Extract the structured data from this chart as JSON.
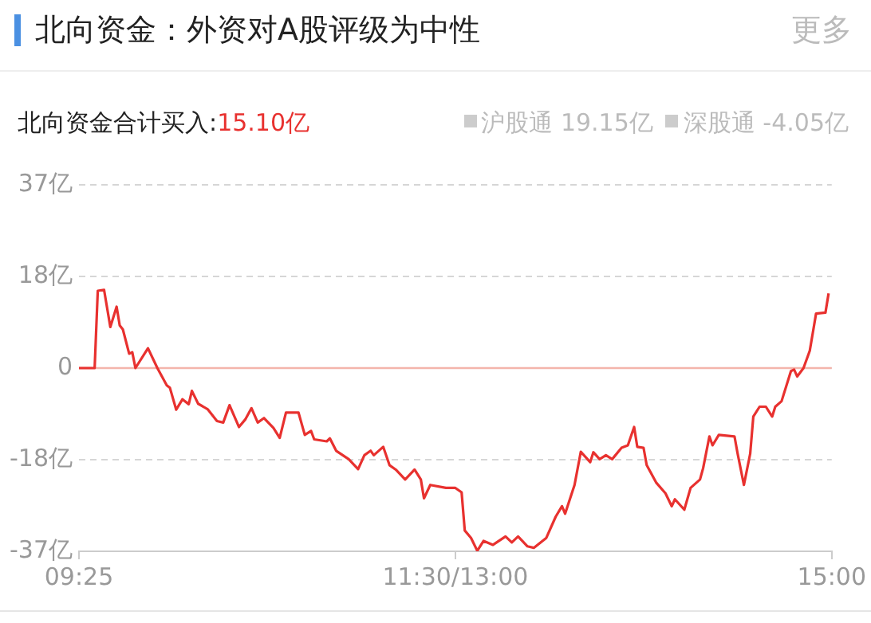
{
  "chart_data": {
    "type": "line",
    "title": "北向资金：外资对A股评级为中性",
    "subtitle": "北向资金合计买入:15.10亿",
    "annotations": [
      "沪股通 19.15亿",
      "深股通 -4.05亿",
      "更多"
    ],
    "categories": [
      "09:25",
      null,
      null,
      null,
      null,
      null,
      null,
      null,
      null,
      null,
      null,
      null,
      null,
      null,
      null,
      null,
      null,
      null,
      null,
      null,
      null,
      null,
      null,
      null,
      null,
      null,
      null,
      null,
      null,
      null,
      null,
      null,
      null,
      null,
      null,
      null,
      null,
      null,
      null,
      null,
      null,
      null,
      null,
      null,
      null,
      null,
      null,
      null,
      null,
      null,
      null,
      null,
      null,
      null,
      null,
      null,
      null,
      null,
      null,
      null,
      null,
      null,
      null,
      null,
      null,
      null,
      null,
      null,
      null,
      null,
      null,
      null,
      null,
      null,
      null,
      null,
      null,
      null,
      null,
      null,
      null,
      null,
      null,
      null,
      null,
      null,
      null,
      null,
      null,
      null,
      null,
      null,
      null,
      null,
      null,
      null,
      null,
      null,
      null,
      null,
      null,
      null,
      null,
      null,
      null,
      null,
      null,
      null,
      null,
      null,
      null,
      null,
      null,
      null,
      null,
      null,
      null,
      null,
      null,
      null,
      "11:30/13:00",
      null,
      null,
      null,
      null,
      null,
      null,
      null,
      null,
      null,
      null,
      null,
      null,
      null,
      null,
      null,
      null,
      null,
      null,
      null,
      null,
      null,
      null,
      null,
      null,
      null,
      null,
      null,
      null,
      null,
      null,
      null,
      null,
      null,
      null,
      null,
      null,
      null,
      null,
      null,
      null,
      null,
      null,
      null,
      null,
      null,
      null,
      null,
      null,
      null,
      null,
      null,
      null,
      null,
      null,
      null,
      null,
      null,
      null,
      null,
      null,
      null,
      null,
      null,
      null,
      null,
      null,
      null,
      null,
      null,
      null,
      null,
      null,
      null,
      null,
      null,
      null,
      null,
      null,
      null,
      null,
      null,
      null,
      null,
      null,
      null,
      null,
      null,
      null,
      null,
      null,
      null,
      null,
      null,
      null,
      null,
      null,
      null,
      null,
      null,
      null,
      null,
      null,
      null,
      null,
      null,
      null,
      null,
      null,
      null,
      null,
      null,
      null,
      null,
      null,
      null,
      null,
      null,
      null,
      null,
      "15:00"
    ],
    "series": [
      {
        "color": "#e8312f",
        "values": [
          0,
          null,
          null,
          null,
          null,
          0,
          15.6,
          null,
          15.8,
          null,
          8.3,
          null,
          12.4,
          8.6,
          7.8,
          null,
          2.9,
          3.2,
          0,
          null,
          null,
          null,
          4.0,
          null,
          null,
          0,
          null,
          null,
          -3.5,
          -4.0,
          null,
          -8.4,
          null,
          -6.3,
          null,
          -7.3,
          -4.6,
          null,
          -7.2,
          null,
          null,
          -8.3,
          null,
          null,
          -10.7,
          null,
          -11.0,
          null,
          -7.5,
          null,
          null,
          -11.9,
          null,
          -10.4,
          null,
          -8.1,
          null,
          -11.0,
          null,
          -10.1,
          null,
          null,
          -12.1,
          null,
          -14.1,
          null,
          -9.0,
          null,
          null,
          null,
          -9.0,
          null,
          -13.5,
          null,
          -12.7,
          -14.4,
          null,
          null,
          null,
          -14.8,
          -14.2,
          null,
          -16.7,
          null,
          null,
          null,
          -18.4,
          null,
          null,
          -20.4,
          null,
          -17.6,
          null,
          -16.7,
          -17.6,
          null,
          null,
          -15.9,
          null,
          -19.6,
          null,
          -20.5,
          null,
          null,
          -22.5,
          null,
          null,
          -20.5,
          null,
          -22.5,
          -26.3,
          null,
          -23.6,
          null,
          null,
          null,
          null,
          -24.2,
          null,
          null,
          -24.2,
          null,
          -25.1,
          -32.8,
          null,
          -34.3,
          null,
          -36.9,
          null,
          -34.9,
          null,
          null,
          -35.7,
          null,
          null,
          null,
          -34.0,
          null,
          -35.2,
          null,
          -34.0,
          null,
          null,
          -36.0,
          null,
          -36.3,
          null,
          null,
          null,
          -34.3,
          null,
          null,
          -30.0,
          null,
          -27.9,
          -29.4,
          null,
          null,
          -23.6,
          null,
          -16.9,
          null,
          null,
          -19.0,
          -17.0,
          null,
          -18.4,
          null,
          -17.6,
          null,
          -18.4,
          null,
          null,
          -16.1,
          null,
          -15.6,
          null,
          -11.9,
          -15.9,
          null,
          -16.1,
          -19.6,
          null,
          null,
          -23.1,
          null,
          null,
          -25.3,
          null,
          -27.9,
          -26.5,
          null,
          null,
          -28.6,
          null,
          -24.2,
          null,
          null,
          -22.5,
          -20.2,
          null,
          -13.8,
          -15.6,
          null,
          -13.5,
          null,
          null,
          null,
          null,
          -13.8,
          -17.3,
          null,
          -23.6,
          null,
          -17.3,
          -9.8,
          null,
          -7.8,
          null,
          -7.8,
          null,
          -9.8,
          -7.8,
          null,
          -6.7,
          null,
          null,
          -0.6,
          -0.3,
          -1.7,
          null,
          0,
          null,
          3.5,
          null,
          11.0,
          null,
          null,
          11.2,
          15.1,
          null
        ]
      }
    ],
    "ylim": [
      -37,
      37
    ],
    "yticks": [
      {
        "value": 37,
        "label": "37亿"
      },
      {
        "value": 18.5,
        "label": "18亿"
      },
      {
        "value": 0,
        "label": "0"
      },
      {
        "value": -18.5,
        "label": "-18亿"
      },
      {
        "value": -37,
        "label": "-37亿"
      }
    ],
    "ref_lines": [
      {
        "axis": "y",
        "value": 0,
        "color": "#f4b4ab"
      }
    ],
    "grid": "y",
    "legend": false,
    "marker": "none",
    "line_style": "solid"
  }
}
